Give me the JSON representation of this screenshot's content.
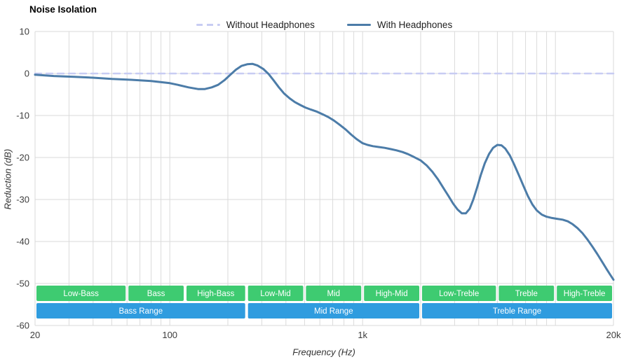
{
  "title": "Noise Isolation",
  "legend": {
    "items": [
      {
        "label": "Without Headphones",
        "color": "#c8ccf3",
        "style": "dashed"
      },
      {
        "label": "With Headphones",
        "color": "#4c7ca8",
        "style": "solid"
      }
    ]
  },
  "chart_data": {
    "type": "line",
    "title": "Noise Isolation",
    "xlabel": "Frequency (Hz)",
    "ylabel": "Reduction (dB)",
    "xscale": "log",
    "xlim": [
      20,
      20000
    ],
    "ylim": [
      -60,
      10
    ],
    "grid": true,
    "grid_color": "#dadada",
    "legend_position": "top-center",
    "xticks": [
      {
        "value": 20,
        "label": "20"
      },
      {
        "value": 100,
        "label": "100"
      },
      {
        "value": 1000,
        "label": "1k"
      },
      {
        "value": 20000,
        "label": "20k"
      }
    ],
    "yticks": [
      {
        "value": 10,
        "label": "10"
      },
      {
        "value": 0,
        "label": "0"
      },
      {
        "value": -10,
        "label": "-10"
      },
      {
        "value": -20,
        "label": "-20"
      },
      {
        "value": -30,
        "label": "-30"
      },
      {
        "value": -40,
        "label": "-40"
      },
      {
        "value": -50,
        "label": "-50"
      },
      {
        "value": -60,
        "label": "-60"
      }
    ],
    "series": [
      {
        "name": "Without Headphones",
        "color": "#c8ccf3",
        "dashed": true,
        "width": 2.5,
        "points": [
          [
            20,
            0
          ],
          [
            20000,
            0
          ]
        ]
      },
      {
        "name": "With Headphones",
        "color": "#4c7ca8",
        "dashed": false,
        "width": 3,
        "points": [
          [
            20,
            -0.3
          ],
          [
            25,
            -0.6
          ],
          [
            32,
            -0.8
          ],
          [
            40,
            -1.0
          ],
          [
            50,
            -1.3
          ],
          [
            63,
            -1.5
          ],
          [
            80,
            -1.8
          ],
          [
            100,
            -2.3
          ],
          [
            110,
            -2.7
          ],
          [
            125,
            -3.3
          ],
          [
            140,
            -3.7
          ],
          [
            152,
            -3.7
          ],
          [
            165,
            -3.3
          ],
          [
            178,
            -2.7
          ],
          [
            192,
            -1.6
          ],
          [
            206,
            -0.3
          ],
          [
            220,
            0.9
          ],
          [
            235,
            1.8
          ],
          [
            252,
            2.2
          ],
          [
            268,
            2.3
          ],
          [
            285,
            1.9
          ],
          [
            305,
            1.1
          ],
          [
            325,
            -0.1
          ],
          [
            345,
            -1.6
          ],
          [
            368,
            -3.3
          ],
          [
            392,
            -4.8
          ],
          [
            418,
            -5.9
          ],
          [
            445,
            -6.8
          ],
          [
            475,
            -7.5
          ],
          [
            505,
            -8.1
          ],
          [
            540,
            -8.6
          ],
          [
            580,
            -9.1
          ],
          [
            620,
            -9.7
          ],
          [
            665,
            -10.4
          ],
          [
            710,
            -11.2
          ],
          [
            760,
            -12.2
          ],
          [
            815,
            -13.3
          ],
          [
            870,
            -14.5
          ],
          [
            930,
            -15.6
          ],
          [
            1000,
            -16.6
          ],
          [
            1060,
            -17.0
          ],
          [
            1130,
            -17.3
          ],
          [
            1210,
            -17.5
          ],
          [
            1300,
            -17.7
          ],
          [
            1400,
            -18.0
          ],
          [
            1500,
            -18.3
          ],
          [
            1610,
            -18.7
          ],
          [
            1720,
            -19.2
          ],
          [
            1850,
            -19.9
          ],
          [
            2000,
            -20.7
          ],
          [
            2150,
            -21.9
          ],
          [
            2300,
            -23.4
          ],
          [
            2460,
            -25.2
          ],
          [
            2620,
            -27.2
          ],
          [
            2790,
            -29.2
          ],
          [
            2950,
            -31.0
          ],
          [
            3110,
            -32.4
          ],
          [
            3270,
            -33.3
          ],
          [
            3430,
            -33.3
          ],
          [
            3590,
            -32.2
          ],
          [
            3750,
            -30.0
          ],
          [
            3920,
            -27.2
          ],
          [
            4100,
            -24.2
          ],
          [
            4300,
            -21.4
          ],
          [
            4520,
            -19.2
          ],
          [
            4750,
            -17.7
          ],
          [
            5000,
            -17.0
          ],
          [
            5250,
            -17.1
          ],
          [
            5500,
            -17.9
          ],
          [
            5800,
            -19.5
          ],
          [
            6100,
            -21.6
          ],
          [
            6450,
            -24.1
          ],
          [
            6800,
            -26.6
          ],
          [
            7200,
            -29.2
          ],
          [
            7600,
            -31.2
          ],
          [
            8000,
            -32.6
          ],
          [
            8500,
            -33.6
          ],
          [
            9000,
            -34.1
          ],
          [
            9600,
            -34.4
          ],
          [
            10200,
            -34.6
          ],
          [
            10900,
            -34.8
          ],
          [
            11600,
            -35.2
          ],
          [
            12300,
            -35.9
          ],
          [
            13000,
            -36.8
          ],
          [
            13800,
            -38.0
          ],
          [
            14700,
            -39.6
          ],
          [
            15600,
            -41.3
          ],
          [
            16500,
            -43.0
          ],
          [
            17500,
            -44.9
          ],
          [
            18500,
            -46.7
          ],
          [
            19300,
            -48.0
          ],
          [
            20000,
            -49.1
          ]
        ]
      }
    ],
    "band_color": "#3ecb71",
    "range_color": "#2f9cdf",
    "frequency_bands": [
      {
        "label": "Low-Bass",
        "from": 20,
        "to": 60
      },
      {
        "label": "Bass",
        "from": 60,
        "to": 120
      },
      {
        "label": "High-Bass",
        "from": 120,
        "to": 250
      },
      {
        "label": "Low-Mid",
        "from": 250,
        "to": 500
      },
      {
        "label": "Mid",
        "from": 500,
        "to": 1000
      },
      {
        "label": "High-Mid",
        "from": 1000,
        "to": 2000
      },
      {
        "label": "Low-Treble",
        "from": 2000,
        "to": 5000
      },
      {
        "label": "Treble",
        "from": 5000,
        "to": 10000
      },
      {
        "label": "High-Treble",
        "from": 10000,
        "to": 20000
      }
    ],
    "frequency_ranges": [
      {
        "label": "Bass Range",
        "from": 20,
        "to": 250
      },
      {
        "label": "Mid Range",
        "from": 250,
        "to": 2000
      },
      {
        "label": "Treble Range",
        "from": 2000,
        "to": 20000
      }
    ]
  }
}
